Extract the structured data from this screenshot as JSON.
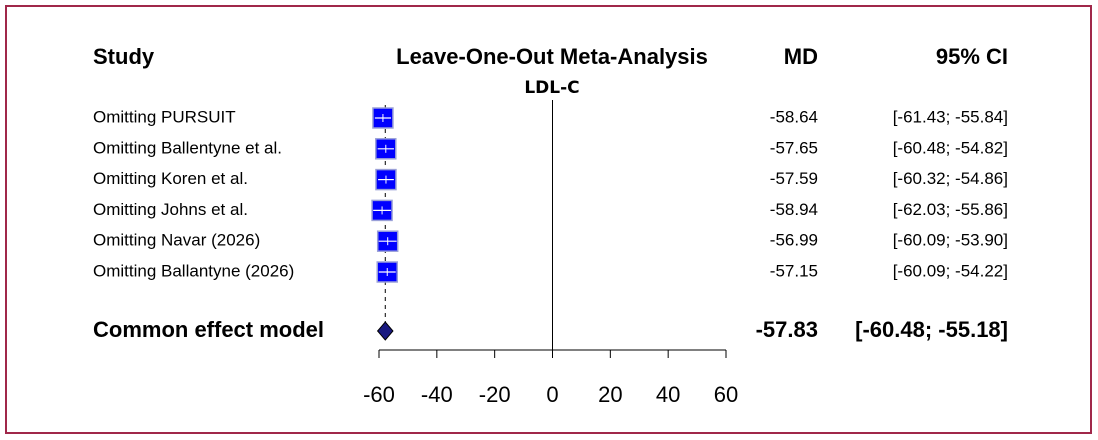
{
  "chart_data": {
    "type": "forest",
    "title": "Leave-One-Out Meta-Analysis",
    "subtitle": "LDL-C",
    "columns": {
      "study": "Study",
      "md": "MD",
      "ci": "95% CI"
    },
    "rows": [
      {
        "label": "Omitting PURSUIT",
        "md": -58.64,
        "ci_lower": -61.43,
        "ci_upper": -55.84,
        "ci_label": "[-61.43; -55.84]"
      },
      {
        "label": "Omitting Ballentyne et al.",
        "md": -57.65,
        "ci_lower": -60.48,
        "ci_upper": -54.82,
        "ci_label": "[-60.48; -54.82]"
      },
      {
        "label": "Omitting Koren et al.",
        "md": -57.59,
        "ci_lower": -60.32,
        "ci_upper": -54.86,
        "ci_label": "[-60.32; -54.86]"
      },
      {
        "label": "Omitting Johns et al.",
        "md": -58.94,
        "ci_lower": -62.03,
        "ci_upper": -55.86,
        "ci_label": "[-62.03; -55.86]"
      },
      {
        "label": "Omitting Navar (2026)",
        "md": -56.99,
        "ci_lower": -60.09,
        "ci_upper": -53.9,
        "ci_label": "[-60.09; -53.90]"
      },
      {
        "label": "Omitting Ballantyne (2026)",
        "md": -57.15,
        "ci_lower": -60.09,
        "ci_upper": -54.22,
        "ci_label": "[-60.09; -54.22]"
      }
    ],
    "summary": {
      "label": "Common effect model",
      "md": -57.83,
      "ci_lower": -60.48,
      "ci_upper": -55.18,
      "ci_label": "[-60.48; -55.18]"
    },
    "xlim": [
      -60,
      60
    ],
    "xticks": [
      -60,
      -40,
      -20,
      0,
      20,
      40,
      60
    ],
    "color": "#0000ff",
    "summary_color": "#1a1a80",
    "border_color": "#a0284a"
  }
}
